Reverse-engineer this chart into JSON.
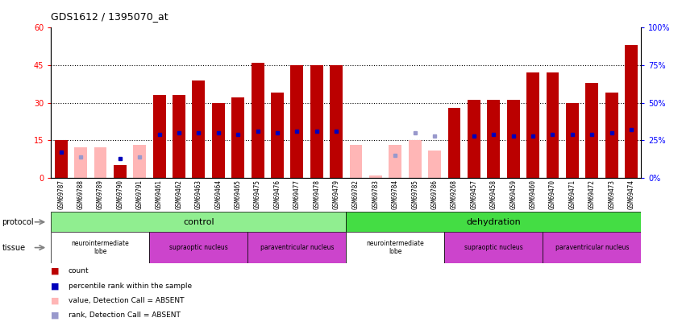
{
  "title": "GDS1612 / 1395070_at",
  "samples": [
    "GSM69787",
    "GSM69788",
    "GSM69789",
    "GSM69790",
    "GSM69791",
    "GSM69461",
    "GSM69462",
    "GSM69463",
    "GSM69464",
    "GSM69465",
    "GSM69475",
    "GSM69476",
    "GSM69477",
    "GSM69478",
    "GSM69479",
    "GSM69782",
    "GSM69783",
    "GSM69784",
    "GSM69785",
    "GSM69786",
    "GSM69268",
    "GSM69457",
    "GSM69458",
    "GSM69459",
    "GSM69460",
    "GSM69470",
    "GSM69471",
    "GSM69472",
    "GSM69473",
    "GSM69474"
  ],
  "count_values": [
    15,
    null,
    null,
    5,
    null,
    33,
    33,
    39,
    30,
    32,
    46,
    34,
    45,
    45,
    45,
    null,
    null,
    null,
    null,
    null,
    28,
    31,
    31,
    31,
    42,
    42,
    30,
    38,
    34,
    53
  ],
  "rank_values": [
    17,
    null,
    null,
    13,
    null,
    29,
    30,
    30,
    30,
    29,
    31,
    30,
    31,
    31,
    31,
    null,
    null,
    null,
    null,
    null,
    null,
    28,
    29,
    28,
    28,
    29,
    29,
    29,
    30,
    32
  ],
  "absent_count": [
    null,
    12,
    12,
    null,
    13,
    null,
    null,
    null,
    null,
    null,
    null,
    null,
    null,
    null,
    null,
    13,
    1,
    13,
    15,
    11,
    null,
    null,
    null,
    null,
    null,
    null,
    null,
    null,
    null,
    null
  ],
  "absent_rank": [
    null,
    14,
    null,
    null,
    14,
    null,
    null,
    null,
    null,
    null,
    null,
    null,
    null,
    null,
    null,
    null,
    null,
    15,
    30,
    28,
    null,
    null,
    null,
    null,
    null,
    null,
    null,
    null,
    null,
    null
  ],
  "ylim_left": [
    0,
    60
  ],
  "ylim_right": [
    0,
    100
  ],
  "yticks_left": [
    0,
    15,
    30,
    45,
    60
  ],
  "yticks_right": [
    0,
    25,
    50,
    75,
    100
  ],
  "bar_color_present": "#bb0000",
  "bar_color_absent": "#ffb6b6",
  "rank_color_present": "#0000bb",
  "rank_color_absent": "#9999cc",
  "protocol_color_control": "#90ee90",
  "protocol_color_dehydration": "#44dd44",
  "tissue_color_white": "#ffffff",
  "tissue_color_purple": "#cc44cc",
  "legend_labels": [
    "count",
    "percentile rank within the sample",
    "value, Detection Call = ABSENT",
    "rank, Detection Call = ABSENT"
  ],
  "legend_colors": [
    "#bb0000",
    "#0000bb",
    "#ffb6b6",
    "#9999cc"
  ]
}
